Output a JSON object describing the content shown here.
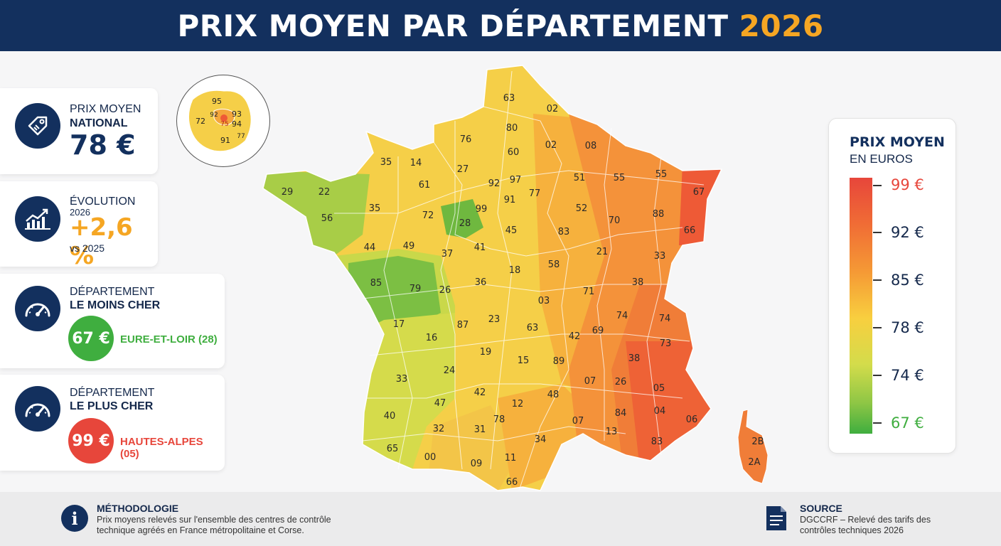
{
  "header": {
    "title": "PRIX MOYEN PAR DÉPARTEMENT",
    "year": "2026"
  },
  "kpis": {
    "national": {
      "icon": "price-tag-icon",
      "label1": "PRIX MOYEN",
      "label2": "NATIONAL",
      "value": "78 €"
    },
    "evolution": {
      "icon": "growth-chart-icon",
      "label1": "ÉVOLUTION",
      "label2": "2026",
      "value": "+2,6 %",
      "note": "vs 2025"
    },
    "cheapest": {
      "icon": "speedometer-icon",
      "label1": "DÉPARTEMENT",
      "label2": "LE MOINS CHER",
      "value": "67 €",
      "name": "EURE-ET-LOIR (28)",
      "color": "#3fae3f"
    },
    "priciest": {
      "icon": "speedometer-icon",
      "label1": "DÉPARTEMENT",
      "label2": "LE PLUS CHER",
      "value": "99 €",
      "name": "HAUTES-ALPES (05)",
      "color": "#e7463b"
    }
  },
  "inset_map": {
    "labels": [
      "95",
      "72",
      "92",
      "93",
      "75",
      "94",
      "91",
      "77"
    ]
  },
  "map": {
    "labels": [
      "63",
      "02",
      "80",
      "76",
      "60",
      "02",
      "08",
      "14",
      "35",
      "27",
      "92",
      "97",
      "51",
      "55",
      "55",
      "61",
      "91",
      "77",
      "67",
      "29",
      "22",
      "35",
      "72",
      "99",
      "52",
      "88",
      "56",
      "28",
      "45",
      "83",
      "70",
      "44",
      "49",
      "37",
      "41",
      "21",
      "66",
      "18",
      "58",
      "33",
      "85",
      "79",
      "26",
      "36",
      "71",
      "38",
      "03",
      "17",
      "87",
      "23",
      "74",
      "74",
      "16",
      "63",
      "42",
      "69",
      "19",
      "73",
      "38",
      "24",
      "15",
      "89",
      "33",
      "07",
      "26",
      "05",
      "48",
      "42",
      "47",
      "12",
      "40",
      "78",
      "31",
      "34",
      "32",
      "07",
      "84",
      "13",
      "04",
      "06",
      "83",
      "65",
      "00",
      "09",
      "11",
      "66",
      "2B",
      "2A"
    ],
    "colors": {
      "green": "#7cbf43",
      "yellowgreen": "#c9d84a",
      "yellow": "#f5cf48",
      "orange": "#f4a63b",
      "darkorange": "#f07d38",
      "red": "#ee5a36"
    }
  },
  "legend": {
    "title": "PRIX MOYEN",
    "subtitle": "EN EUROS",
    "values": [
      "99 €",
      "92 €",
      "85 €",
      "78 €",
      "74 €",
      "67 €"
    ],
    "min_color": "#3fae3f",
    "max_color": "#e7463b"
  },
  "footer": {
    "method_title": "MÉTHODOLOGIE",
    "method_text1": "Prix moyens relevés sur l'ensemble des centres de contrôle",
    "method_text2": "technique agréés en France métropolitaine et Corse.",
    "source_title": "SOURCE",
    "source_text1": "DGCCRF – Relevé des tarifs des",
    "source_text2": "contrôles techniques 2026"
  }
}
